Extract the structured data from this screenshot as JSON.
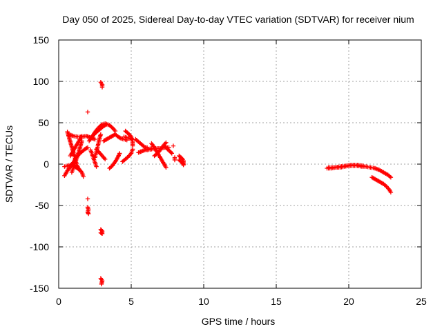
{
  "chart_data": {
    "type": "scatter",
    "title": "Day 050 of 2025, Sidereal Day-to-day VTEC variation (SDTVAR) for receiver nium",
    "xlabel": "GPS time / hours",
    "ylabel": "SDTVAR / TECUs",
    "xlim": [
      0,
      25
    ],
    "ylim": [
      -150,
      150
    ],
    "x_ticks": [
      0,
      5,
      10,
      15,
      20,
      25
    ],
    "y_ticks": [
      -150,
      -100,
      -50,
      0,
      50,
      100,
      150
    ],
    "grid": true,
    "marker": "+",
    "marker_color": "#ff0000",
    "series": [
      {
        "name": "SDTVAR",
        "tracks": [
          [
            [
              0.4,
              -14
            ],
            [
              0.6,
              -8
            ],
            [
              0.8,
              -3
            ],
            [
              1.0,
              2
            ],
            [
              1.2,
              8
            ],
            [
              1.4,
              12
            ],
            [
              1.6,
              15
            ],
            [
              1.8,
              18
            ],
            [
              2.0,
              20
            ]
          ],
          [
            [
              0.4,
              -3
            ],
            [
              0.6,
              -2
            ],
            [
              0.8,
              -1
            ],
            [
              1.0,
              -2
            ],
            [
              1.2,
              -4
            ],
            [
              1.4,
              -6
            ],
            [
              1.6,
              -10
            ],
            [
              1.7,
              -15
            ]
          ],
          [
            [
              0.6,
              39
            ],
            [
              0.7,
              33
            ],
            [
              0.8,
              27
            ],
            [
              0.9,
              21
            ],
            [
              1.0,
              15
            ],
            [
              1.1,
              9
            ],
            [
              1.2,
              2
            ],
            [
              1.3,
              -3
            ],
            [
              1.4,
              -7
            ]
          ],
          [
            [
              0.9,
              -10
            ],
            [
              1.0,
              -5
            ],
            [
              1.1,
              0
            ],
            [
              1.2,
              5
            ],
            [
              1.3,
              10
            ],
            [
              1.4,
              16
            ],
            [
              1.5,
              22
            ],
            [
              1.6,
              28
            ]
          ],
          [
            [
              0.8,
              10
            ],
            [
              1.0,
              16
            ],
            [
              1.2,
              22
            ],
            [
              1.4,
              28
            ],
            [
              1.6,
              34
            ]
          ],
          [
            [
              0.7,
              36
            ],
            [
              1.0,
              34
            ],
            [
              1.3,
              33
            ],
            [
              1.6,
              33
            ],
            [
              1.9,
              34
            ],
            [
              2.2,
              32
            ],
            [
              2.5,
              30
            ]
          ],
          [
            [
              2.0,
              63
            ]
          ],
          [
            [
              2.0,
              -42
            ]
          ],
          [
            [
              2.0,
              -52
            ],
            [
              2.05,
              -55
            ],
            [
              2.0,
              -58
            ],
            [
              2.05,
              -60
            ]
          ],
          [
            [
              2.2,
              17
            ],
            [
              2.3,
              12
            ],
            [
              2.4,
              7
            ],
            [
              2.5,
              2
            ],
            [
              2.6,
              -3
            ]
          ],
          [
            [
              2.1,
              28
            ],
            [
              2.3,
              33
            ],
            [
              2.5,
              37
            ],
            [
              2.7,
              40
            ],
            [
              2.9,
              43
            ],
            [
              3.1,
              46
            ],
            [
              3.3,
              48
            ],
            [
              3.5,
              47
            ],
            [
              3.7,
              44
            ],
            [
              3.9,
              40
            ]
          ],
          [
            [
              2.2,
              30
            ],
            [
              2.4,
              36
            ],
            [
              2.6,
              41
            ],
            [
              2.8,
              45
            ],
            [
              3.0,
              48
            ],
            [
              3.2,
              49
            ],
            [
              3.4,
              48
            ]
          ],
          [
            [
              2.5,
              8
            ],
            [
              2.6,
              15
            ],
            [
              2.7,
              22
            ],
            [
              2.8,
              30
            ],
            [
              2.9,
              36
            ]
          ],
          [
            [
              2.6,
              18
            ],
            [
              2.8,
              14
            ],
            [
              3.0,
              10
            ],
            [
              3.2,
              6
            ]
          ],
          [
            [
              2.9,
              99
            ],
            [
              3.0,
              96
            ],
            [
              3.0,
              93
            ]
          ],
          [
            [
              2.9,
              -79
            ],
            [
              3.0,
              -81
            ],
            [
              3.0,
              -84
            ],
            [
              2.9,
              -83
            ]
          ],
          [
            [
              2.9,
              -138
            ],
            [
              3.0,
              -141
            ],
            [
              2.95,
              -145
            ]
          ],
          [
            [
              3.1,
              28
            ],
            [
              3.3,
              30
            ],
            [
              3.5,
              32
            ],
            [
              3.7,
              34
            ],
            [
              3.9,
              36
            ]
          ],
          [
            [
              3.5,
              -5
            ],
            [
              3.7,
              -2
            ],
            [
              3.9,
              3
            ],
            [
              4.1,
              9
            ],
            [
              4.2,
              13
            ]
          ],
          [
            [
              3.9,
              36
            ],
            [
              4.1,
              33
            ],
            [
              4.3,
              31
            ],
            [
              4.5,
              30
            ],
            [
              4.7,
              29
            ]
          ],
          [
            [
              4.4,
              3
            ],
            [
              4.6,
              6
            ],
            [
              4.8,
              9
            ],
            [
              5.0,
              13
            ],
            [
              5.1,
              18
            ]
          ],
          [
            [
              4.6,
              40
            ],
            [
              4.8,
              37
            ],
            [
              5.0,
              33
            ],
            [
              5.1,
              28
            ],
            [
              5.1,
              22
            ]
          ],
          [
            [
              4.5,
              33
            ],
            [
              4.7,
              32
            ],
            [
              4.9,
              31
            ],
            [
              5.1,
              30
            ]
          ],
          [
            [
              5.3,
              30
            ],
            [
              5.5,
              27
            ],
            [
              5.7,
              24
            ],
            [
              5.9,
              21
            ],
            [
              6.1,
              20
            ]
          ],
          [
            [
              5.5,
              14
            ],
            [
              5.8,
              16
            ],
            [
              6.1,
              18
            ],
            [
              6.4,
              19
            ]
          ],
          [
            [
              6.1,
              17
            ],
            [
              6.4,
              18
            ],
            [
              6.7,
              19
            ],
            [
              7.0,
              19
            ],
            [
              7.3,
              20
            ],
            [
              7.6,
              20
            ]
          ],
          [
            [
              6.4,
              25
            ],
            [
              6.6,
              20
            ],
            [
              6.8,
              14
            ],
            [
              7.0,
              8
            ],
            [
              7.2,
              2
            ],
            [
              7.4,
              -4
            ]
          ],
          [
            [
              6.6,
              10
            ],
            [
              6.8,
              13
            ],
            [
              7.0,
              17
            ],
            [
              7.2,
              22
            ],
            [
              7.4,
              26
            ]
          ],
          [
            [
              7.3,
              22
            ],
            [
              7.5,
              18
            ],
            [
              7.7,
              15
            ],
            [
              7.8,
              13
            ]
          ],
          [
            [
              7.9,
              22
            ]
          ],
          [
            [
              8.0,
              8
            ],
            [
              8.0,
              5
            ]
          ],
          [
            [
              8.3,
              10
            ],
            [
              8.5,
              7
            ],
            [
              8.6,
              4
            ],
            [
              8.6,
              0
            ]
          ],
          [
            [
              8.3,
              5
            ],
            [
              8.5,
              2
            ],
            [
              8.6,
              -1
            ]
          ],
          [
            [
              18.5,
              -5
            ],
            [
              18.8,
              -5
            ],
            [
              19.1,
              -4
            ],
            [
              19.4,
              -4
            ],
            [
              19.7,
              -3
            ],
            [
              20.0,
              -2
            ],
            [
              20.3,
              -2
            ],
            [
              20.6,
              -2
            ],
            [
              20.9,
              -3
            ],
            [
              21.2,
              -3
            ],
            [
              21.5,
              -4
            ],
            [
              21.8,
              -5
            ],
            [
              22.1,
              -7
            ],
            [
              22.4,
              -10
            ],
            [
              22.7,
              -13
            ],
            [
              22.9,
              -16
            ]
          ],
          [
            [
              18.6,
              -4
            ],
            [
              19.0,
              -4
            ],
            [
              19.4,
              -3
            ],
            [
              19.8,
              -2
            ],
            [
              20.2,
              -1
            ],
            [
              20.6,
              -1
            ],
            [
              21.0,
              -2
            ]
          ],
          [
            [
              21.6,
              -16
            ],
            [
              21.8,
              -18
            ],
            [
              22.0,
              -20
            ],
            [
              22.2,
              -22
            ],
            [
              22.4,
              -24
            ],
            [
              22.6,
              -27
            ],
            [
              22.8,
              -31
            ],
            [
              22.9,
              -34
            ]
          ]
        ]
      }
    ]
  }
}
